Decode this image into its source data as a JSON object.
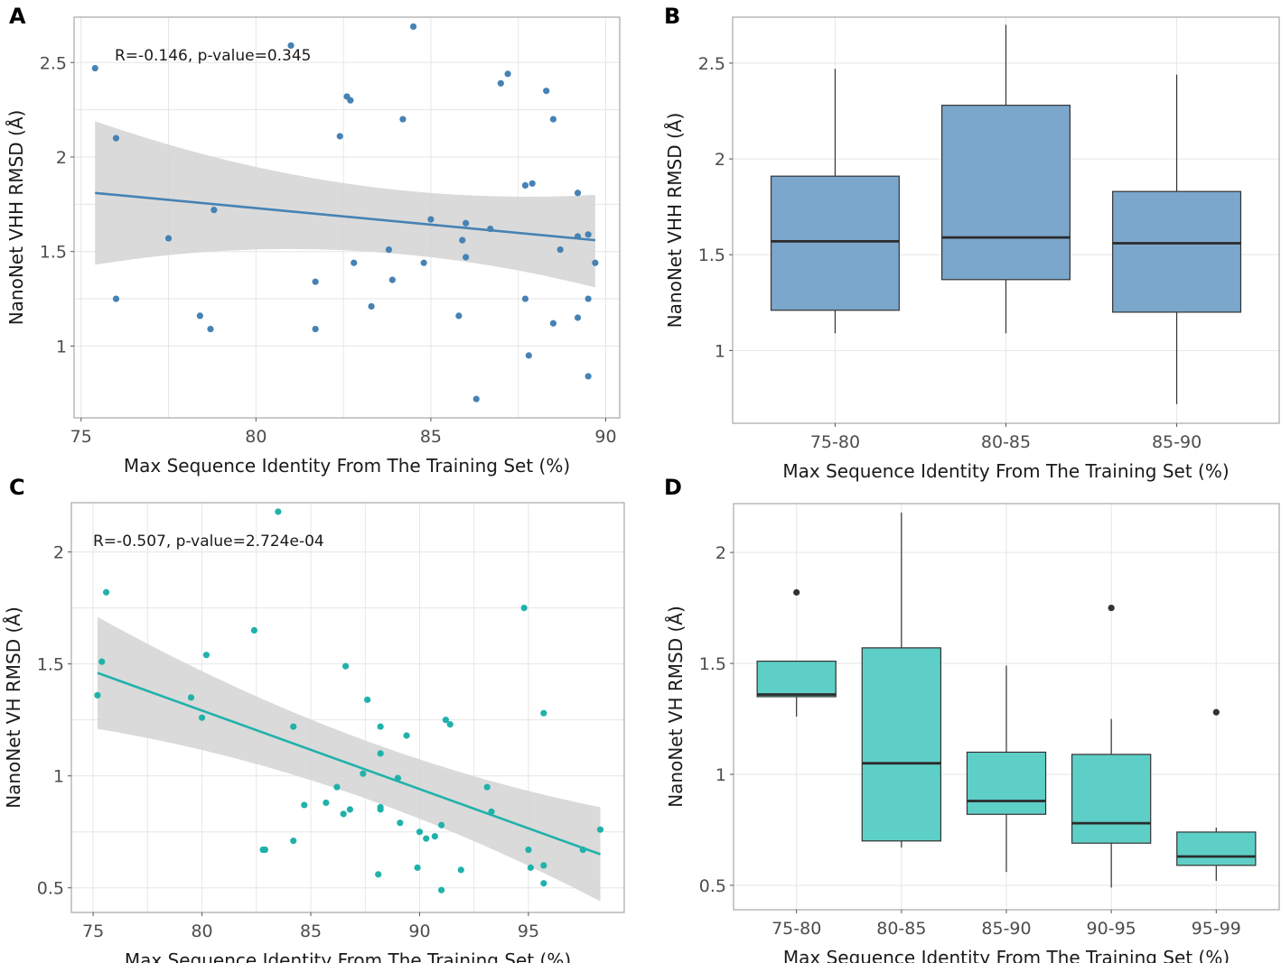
{
  "chart_data": [
    {
      "panel": "A",
      "type": "scatter",
      "annotation": "R=-0.146, p-value=0.345",
      "xlabel": "Max Sequence Identity From The Training Set (%)",
      "ylabel": "NanoNet VHH RMSD (Å)",
      "xlim": [
        74.8,
        90.4
      ],
      "ylim": [
        0.62,
        2.74
      ],
      "xticks": [
        75,
        80,
        85,
        90
      ],
      "xtick_labels": [
        "75",
        "80",
        "85",
        "90"
      ],
      "yticks": [
        1,
        1.5,
        2,
        2.5
      ],
      "ytick_labels": [
        "1",
        "1.5",
        "2",
        "2.5"
      ],
      "color": "#4682b4",
      "points": [
        [
          75.4,
          2.47
        ],
        [
          76.0,
          2.1
        ],
        [
          76.0,
          1.25
        ],
        [
          77.5,
          1.57
        ],
        [
          78.4,
          1.16
        ],
        [
          78.7,
          1.09
        ],
        [
          78.8,
          1.72
        ],
        [
          81.0,
          2.59
        ],
        [
          81.7,
          1.34
        ],
        [
          81.7,
          1.09
        ],
        [
          82.4,
          2.11
        ],
        [
          82.6,
          2.32
        ],
        [
          82.7,
          2.3
        ],
        [
          82.8,
          1.44
        ],
        [
          83.3,
          1.21
        ],
        [
          83.8,
          1.51
        ],
        [
          83.9,
          1.35
        ],
        [
          84.2,
          2.2
        ],
        [
          84.5,
          2.69
        ],
        [
          84.8,
          1.44
        ],
        [
          85.0,
          1.67
        ],
        [
          85.8,
          1.16
        ],
        [
          85.9,
          1.56
        ],
        [
          86.0,
          1.47
        ],
        [
          86.0,
          1.65
        ],
        [
          86.3,
          0.72
        ],
        [
          86.7,
          1.62
        ],
        [
          87.0,
          2.39
        ],
        [
          87.2,
          2.44
        ],
        [
          87.7,
          1.85
        ],
        [
          87.7,
          1.25
        ],
        [
          87.8,
          0.95
        ],
        [
          87.9,
          1.86
        ],
        [
          88.3,
          2.35
        ],
        [
          88.5,
          2.2
        ],
        [
          88.5,
          1.12
        ],
        [
          88.7,
          1.51
        ],
        [
          89.2,
          1.81
        ],
        [
          89.2,
          1.15
        ],
        [
          89.2,
          1.58
        ],
        [
          89.5,
          1.59
        ],
        [
          89.5,
          1.25
        ],
        [
          89.5,
          0.84
        ],
        [
          89.7,
          1.44
        ]
      ],
      "fit": {
        "x": [
          75.4,
          89.7
        ],
        "y": [
          1.81,
          1.56
        ],
        "ci_upper": [
          2.19,
          1.8
        ],
        "ci_lower": [
          1.43,
          1.31
        ]
      }
    },
    {
      "panel": "B",
      "type": "box",
      "xlabel": "Max Sequence Identity From The Training Set (%)",
      "ylabel": "NanoNet VHH RMSD (Å)",
      "ylim": [
        0.62,
        2.74
      ],
      "yticks": [
        1,
        1.5,
        2,
        2.5
      ],
      "ytick_labels": [
        "1",
        "1.5",
        "2",
        "2.5"
      ],
      "categories": [
        "75-80",
        "80-85",
        "85-90"
      ],
      "color": "#7ba7cc",
      "boxes": [
        {
          "whisker_low": 1.09,
          "q1": 1.21,
          "median": 1.57,
          "q3": 1.91,
          "whisker_high": 2.47,
          "outliers": []
        },
        {
          "whisker_low": 1.09,
          "q1": 1.37,
          "median": 1.59,
          "q3": 2.28,
          "whisker_high": 2.7,
          "outliers": []
        },
        {
          "whisker_low": 0.72,
          "q1": 1.2,
          "median": 1.56,
          "q3": 1.83,
          "whisker_high": 2.44,
          "outliers": []
        }
      ]
    },
    {
      "panel": "C",
      "type": "scatter",
      "annotation": "R=-0.507, p-value=2.724e-04",
      "xlabel": "Max Sequence Identity From The Training Set (%)",
      "ylabel": "NanoNet VH RMSD (Å)",
      "xlim": [
        74.0,
        99.4
      ],
      "ylim": [
        0.39,
        2.22
      ],
      "xticks": [
        75,
        80,
        85,
        90,
        95
      ],
      "xtick_labels": [
        "75",
        "80",
        "85",
        "90",
        "95"
      ],
      "yticks": [
        0.5,
        1,
        1.5,
        2
      ],
      "ytick_labels": [
        "0.5",
        "1",
        "1.5",
        "2"
      ],
      "color": "#20b2aa",
      "points": [
        [
          75.2,
          1.36
        ],
        [
          75.4,
          1.51
        ],
        [
          75.6,
          1.82
        ],
        [
          79.5,
          1.35
        ],
        [
          80.0,
          1.26
        ],
        [
          80.2,
          1.54
        ],
        [
          82.4,
          1.65
        ],
        [
          82.8,
          0.67
        ],
        [
          82.9,
          0.67
        ],
        [
          83.5,
          2.18
        ],
        [
          84.2,
          1.22
        ],
        [
          84.2,
          0.71
        ],
        [
          84.7,
          0.87
        ],
        [
          85.7,
          0.88
        ],
        [
          86.2,
          0.95
        ],
        [
          86.5,
          0.83
        ],
        [
          86.6,
          1.49
        ],
        [
          86.8,
          0.85
        ],
        [
          87.4,
          1.01
        ],
        [
          87.6,
          1.34
        ],
        [
          88.2,
          1.22
        ],
        [
          88.2,
          1.1
        ],
        [
          88.2,
          0.86
        ],
        [
          88.2,
          0.85
        ],
        [
          88.1,
          0.56
        ],
        [
          89.0,
          0.99
        ],
        [
          89.1,
          0.79
        ],
        [
          89.4,
          1.18
        ],
        [
          89.9,
          0.59
        ],
        [
          90.0,
          0.75
        ],
        [
          90.3,
          0.72
        ],
        [
          90.7,
          0.73
        ],
        [
          91.0,
          0.78
        ],
        [
          91.0,
          0.49
        ],
        [
          91.2,
          1.25
        ],
        [
          91.4,
          1.23
        ],
        [
          91.9,
          0.58
        ],
        [
          93.1,
          0.95
        ],
        [
          93.3,
          0.84
        ],
        [
          94.8,
          1.75
        ],
        [
          95.0,
          0.67
        ],
        [
          95.1,
          0.59
        ],
        [
          95.7,
          1.28
        ],
        [
          95.7,
          0.6
        ],
        [
          95.7,
          0.52
        ],
        [
          97.5,
          0.67
        ],
        [
          98.3,
          0.76
        ]
      ],
      "fit": {
        "x": [
          75.2,
          98.3
        ],
        "y": [
          1.46,
          0.65
        ],
        "ci_upper": [
          1.71,
          0.86
        ],
        "ci_lower": [
          1.21,
          0.44
        ]
      }
    },
    {
      "panel": "D",
      "type": "box",
      "xlabel": "Max Sequence Identity From The Training Set (%)",
      "ylabel": "NanoNet VH RMSD (Å)",
      "ylim": [
        0.39,
        2.22
      ],
      "yticks": [
        0.5,
        1,
        1.5,
        2
      ],
      "ytick_labels": [
        "0.5",
        "1",
        "1.5",
        "2"
      ],
      "categories": [
        "75-80",
        "80-85",
        "85-90",
        "90-95",
        "95-99"
      ],
      "color": "#5ecfc7",
      "boxes": [
        {
          "whisker_low": 1.26,
          "q1": 1.35,
          "median": 1.36,
          "q3": 1.51,
          "whisker_high": 1.51,
          "outliers": [
            1.82
          ]
        },
        {
          "whisker_low": 0.67,
          "q1": 0.7,
          "median": 1.05,
          "q3": 1.57,
          "whisker_high": 2.18,
          "outliers": []
        },
        {
          "whisker_low": 0.56,
          "q1": 0.82,
          "median": 0.88,
          "q3": 1.1,
          "whisker_high": 1.49,
          "outliers": []
        },
        {
          "whisker_low": 0.49,
          "q1": 0.69,
          "median": 0.78,
          "q3": 1.09,
          "whisker_high": 1.25,
          "outliers": [
            1.75
          ]
        },
        {
          "whisker_low": 0.52,
          "q1": 0.59,
          "median": 0.63,
          "q3": 0.74,
          "whisker_high": 0.76,
          "outliers": [
            1.28
          ]
        }
      ]
    }
  ]
}
